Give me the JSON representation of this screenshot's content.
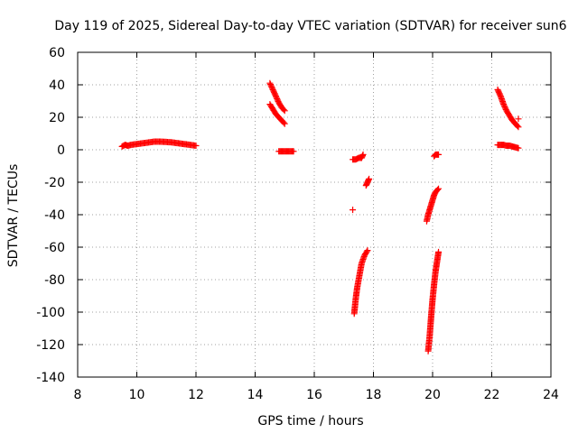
{
  "chart_data": {
    "type": "scatter",
    "title": "Day 119 of 2025, Sidereal Day-to-day VTEC variation (SDTVAR) for receiver sun6",
    "xlabel": "GPS time / hours",
    "ylabel": "SDTVAR / TECUs",
    "xlim": [
      8,
      24
    ],
    "ylim": [
      -140,
      60
    ],
    "xticks": [
      8,
      10,
      12,
      14,
      16,
      18,
      20,
      22,
      24
    ],
    "yticks": [
      60,
      40,
      20,
      0,
      -20,
      -40,
      -60,
      -80,
      -100,
      -120,
      -140
    ],
    "grid": true,
    "marker": "+",
    "series": [
      {
        "name": "SDTVAR",
        "color": "#ff0000",
        "segments": [
          {
            "label": "arc-9.5-12",
            "x_start": 9.5,
            "x_end": 12.0,
            "points": [
              [
                9.5,
                2
              ],
              [
                9.6,
                3
              ],
              [
                9.7,
                2.5
              ],
              [
                9.8,
                3
              ],
              [
                10.0,
                3.5
              ],
              [
                10.2,
                4
              ],
              [
                10.4,
                4.5
              ],
              [
                10.6,
                5
              ],
              [
                10.8,
                5
              ],
              [
                11.0,
                4.8
              ],
              [
                11.2,
                4.5
              ],
              [
                11.4,
                4
              ],
              [
                11.6,
                3.5
              ],
              [
                11.8,
                3
              ],
              [
                12.0,
                2.5
              ]
            ]
          },
          {
            "label": "arc-14.5-upper",
            "points": [
              [
                14.5,
                41
              ],
              [
                14.6,
                37
              ],
              [
                14.7,
                33
              ],
              [
                14.8,
                29
              ],
              [
                14.9,
                26
              ],
              [
                15.0,
                24
              ]
            ]
          },
          {
            "label": "arc-14.5-lower",
            "points": [
              [
                14.5,
                28
              ],
              [
                14.6,
                25
              ],
              [
                14.7,
                22
              ],
              [
                14.8,
                20
              ],
              [
                14.9,
                18
              ],
              [
                15.0,
                16
              ]
            ]
          },
          {
            "label": "arc-15-zero",
            "points": [
              [
                14.8,
                -1
              ],
              [
                14.9,
                -1
              ],
              [
                15.0,
                -1
              ],
              [
                15.1,
                -1
              ],
              [
                15.2,
                -1
              ],
              [
                15.3,
                -1
              ]
            ]
          },
          {
            "label": "arc-17.4-near-zero",
            "points": [
              [
                17.3,
                -6
              ],
              [
                17.4,
                -6
              ],
              [
                17.5,
                -5
              ],
              [
                17.6,
                -5
              ],
              [
                17.65,
                -3
              ]
            ]
          },
          {
            "label": "isolated-17.3",
            "points": [
              [
                17.3,
                -37
              ]
            ]
          },
          {
            "label": "arc-17.8-minus20",
            "points": [
              [
                17.75,
                -22
              ],
              [
                17.8,
                -20
              ],
              [
                17.85,
                -18
              ]
            ]
          },
          {
            "label": "arc-17.3-descending",
            "points": [
              [
                17.35,
                -101
              ],
              [
                17.4,
                -92
              ],
              [
                17.45,
                -85
              ],
              [
                17.5,
                -80
              ],
              [
                17.55,
                -75
              ],
              [
                17.6,
                -70
              ],
              [
                17.7,
                -65
              ],
              [
                17.8,
                -62
              ]
            ]
          },
          {
            "label": "arc-20-upper",
            "points": [
              [
                19.8,
                -44
              ],
              [
                19.85,
                -40
              ],
              [
                19.9,
                -37
              ],
              [
                19.95,
                -34
              ],
              [
                20.0,
                -31
              ],
              [
                20.05,
                -28
              ],
              [
                20.1,
                -26
              ],
              [
                20.2,
                -24
              ]
            ]
          },
          {
            "label": "arc-20-near-zero",
            "points": [
              [
                20.05,
                -4
              ],
              [
                20.1,
                -3
              ],
              [
                20.2,
                -3
              ]
            ]
          },
          {
            "label": "arc-20-descending",
            "points": [
              [
                19.85,
                -124
              ],
              [
                19.9,
                -115
              ],
              [
                19.95,
                -103
              ],
              [
                20.0,
                -92
              ],
              [
                20.05,
                -83
              ],
              [
                20.1,
                -75
              ],
              [
                20.15,
                -69
              ],
              [
                20.2,
                -63
              ]
            ]
          },
          {
            "label": "arc-22.3-upper",
            "points": [
              [
                22.2,
                37
              ],
              [
                22.3,
                33
              ],
              [
                22.4,
                28
              ],
              [
                22.5,
                24
              ],
              [
                22.6,
                21
              ],
              [
                22.7,
                18
              ],
              [
                22.8,
                16
              ],
              [
                22.9,
                14
              ]
            ]
          },
          {
            "label": "arc-22.9-isolated",
            "points": [
              [
                22.9,
                19
              ]
            ]
          },
          {
            "label": "arc-22.2-near-zero",
            "points": [
              [
                22.2,
                3
              ],
              [
                22.3,
                3
              ],
              [
                22.4,
                3
              ],
              [
                22.5,
                2.5
              ],
              [
                22.6,
                2.5
              ],
              [
                22.7,
                2
              ],
              [
                22.8,
                1.5
              ],
              [
                22.9,
                1
              ]
            ]
          }
        ]
      }
    ]
  }
}
